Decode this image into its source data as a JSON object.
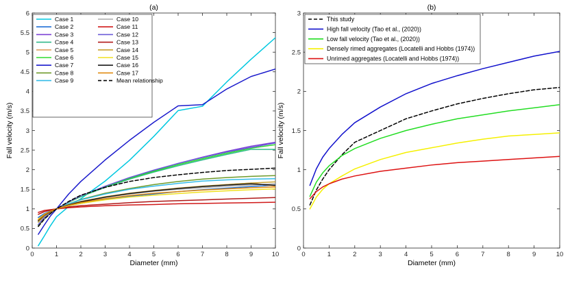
{
  "chart_data": [
    {
      "type": "line",
      "title": "(a)",
      "xlabel": "Diameter (mm)",
      "ylabel": "Fall velocity (m/s)",
      "xlim": [
        0,
        10
      ],
      "ylim": [
        0,
        6
      ],
      "xticks": [
        0,
        1,
        2,
        3,
        4,
        5,
        6,
        7,
        8,
        9,
        10
      ],
      "yticks": [
        0,
        0.5,
        1,
        1.5,
        2,
        2.5,
        3,
        3.5,
        4,
        4.5,
        5,
        5.5,
        6
      ],
      "grid": false,
      "legend_position": "top-left",
      "legend_columns": 2,
      "series": [
        {
          "name": "Case 1",
          "color": "#00c8e0",
          "x": [
            0.25,
            0.5,
            0.75,
            1,
            1.5,
            2,
            3,
            4,
            5,
            6,
            7,
            8,
            9,
            10
          ],
          "y": [
            0.06,
            0.31,
            0.57,
            0.8,
            1.06,
            1.26,
            1.71,
            2.24,
            2.85,
            3.51,
            3.62,
            4.24,
            4.82,
            5.37
          ]
        },
        {
          "name": "Case 2",
          "color": "#1f6fd6",
          "x": [
            0.25,
            0.5,
            0.75,
            1,
            1.5,
            2,
            3,
            4,
            5,
            6,
            7,
            8,
            9,
            10
          ],
          "y": [
            0.78,
            0.88,
            0.95,
            1.0,
            1.08,
            1.14,
            1.24,
            1.32,
            1.38,
            1.44,
            1.49,
            1.53,
            1.57,
            1.61
          ]
        },
        {
          "name": "Case 3",
          "color": "#7a3fd4",
          "x": [
            0.25,
            0.5,
            0.75,
            1,
            1.5,
            2,
            3,
            4,
            5,
            6,
            7,
            8,
            9,
            10
          ],
          "y": [
            0.59,
            0.77,
            0.9,
            1.0,
            1.17,
            1.32,
            1.57,
            1.79,
            1.98,
            2.16,
            2.32,
            2.47,
            2.6,
            2.7
          ]
        },
        {
          "name": "Case 4",
          "color": "#2fb98a",
          "x": [
            0.25,
            0.5,
            0.75,
            1,
            1.5,
            2,
            3,
            4,
            5,
            6,
            7,
            8,
            9,
            10
          ],
          "y": [
            0.6,
            0.78,
            0.9,
            1.0,
            1.17,
            1.31,
            1.55,
            1.76,
            1.94,
            2.1,
            2.25,
            2.39,
            2.52,
            2.52
          ]
        },
        {
          "name": "Case 5",
          "color": "#e0a060",
          "x": [
            0.25,
            0.5,
            0.75,
            1,
            1.5,
            2,
            3,
            4,
            5,
            6,
            7,
            8,
            9,
            10
          ],
          "y": [
            0.7,
            0.84,
            0.93,
            1.0,
            1.1,
            1.18,
            1.3,
            1.39,
            1.46,
            1.52,
            1.57,
            1.62,
            1.66,
            1.58
          ]
        },
        {
          "name": "Case 6",
          "color": "#2edc2e",
          "x": [
            0.25,
            0.5,
            0.75,
            1,
            1.5,
            2,
            3,
            4,
            5,
            6,
            7,
            8,
            9,
            10
          ],
          "y": [
            0.59,
            0.77,
            0.9,
            1.0,
            1.17,
            1.32,
            1.57,
            1.78,
            1.96,
            2.13,
            2.28,
            2.42,
            2.55,
            2.64
          ]
        },
        {
          "name": "Case 7",
          "color": "#1a1acc",
          "x": [
            0.25,
            0.5,
            0.75,
            1,
            1.5,
            2,
            3,
            4,
            5,
            6,
            7,
            8,
            9,
            10
          ],
          "y": [
            0.35,
            0.59,
            0.82,
            1.0,
            1.38,
            1.7,
            2.25,
            2.75,
            3.21,
            3.63,
            3.66,
            4.06,
            4.38,
            4.57
          ]
        },
        {
          "name": "Case 8",
          "color": "#6e9a2a",
          "x": [
            0.25,
            0.5,
            0.75,
            1,
            1.5,
            2,
            3,
            4,
            5,
            6,
            7,
            8,
            9,
            10
          ],
          "y": [
            0.57,
            0.75,
            0.89,
            1.0,
            1.13,
            1.24,
            1.4,
            1.52,
            1.62,
            1.7,
            1.76,
            1.8,
            1.83,
            1.85
          ]
        },
        {
          "name": "Case 9",
          "color": "#33bbe8",
          "x": [
            0.25,
            0.5,
            0.75,
            1,
            1.5,
            2,
            3,
            4,
            5,
            6,
            7,
            8,
            9,
            10
          ],
          "y": [
            0.66,
            0.82,
            0.93,
            1.0,
            1.13,
            1.23,
            1.38,
            1.5,
            1.58,
            1.65,
            1.71,
            1.74,
            1.76,
            1.77
          ]
        },
        {
          "name": "Case 10",
          "color": "#a8a8a8",
          "x": [
            0.25,
            0.5,
            0.75,
            1,
            1.5,
            2,
            3,
            4,
            5,
            6,
            7,
            8,
            9,
            10
          ],
          "y": [
            0.68,
            0.83,
            0.93,
            1.0,
            1.1,
            1.17,
            1.29,
            1.38,
            1.45,
            1.5,
            1.54,
            1.58,
            1.61,
            1.64
          ]
        },
        {
          "name": "Case 11",
          "color": "#d01818",
          "x": [
            0.25,
            0.5,
            0.75,
            1,
            1.5,
            2,
            3,
            4,
            5,
            6,
            7,
            8,
            9,
            10
          ],
          "y": [
            0.91,
            0.96,
            0.98,
            1.0,
            1.03,
            1.05,
            1.08,
            1.1,
            1.11,
            1.13,
            1.14,
            1.15,
            1.16,
            1.17
          ]
        },
        {
          "name": "Case 12",
          "color": "#6a5ad8",
          "x": [
            0.25,
            0.5,
            0.75,
            1,
            1.5,
            2,
            3,
            4,
            5,
            6,
            7,
            8,
            9,
            10
          ],
          "y": [
            0.6,
            0.78,
            0.91,
            1.0,
            1.18,
            1.33,
            1.58,
            1.8,
            1.99,
            2.16,
            2.31,
            2.45,
            2.57,
            2.68
          ]
        },
        {
          "name": "Case 13",
          "color": "#b01818",
          "x": [
            0.25,
            0.5,
            0.75,
            1,
            1.5,
            2,
            3,
            4,
            5,
            6,
            7,
            8,
            9,
            10
          ],
          "y": [
            0.86,
            0.93,
            0.97,
            1.0,
            1.05,
            1.08,
            1.12,
            1.16,
            1.19,
            1.21,
            1.23,
            1.25,
            1.27,
            1.29
          ]
        },
        {
          "name": "Case 14",
          "color": "#c8a030",
          "x": [
            0.25,
            0.5,
            0.75,
            1,
            1.5,
            2,
            3,
            4,
            5,
            6,
            7,
            8,
            9,
            10
          ],
          "y": [
            0.66,
            0.82,
            0.92,
            1.0,
            1.11,
            1.19,
            1.31,
            1.4,
            1.47,
            1.53,
            1.58,
            1.62,
            1.66,
            1.69
          ]
        },
        {
          "name": "Case 15",
          "color": "#f0e020",
          "x": [
            0.25,
            0.5,
            0.75,
            1,
            1.5,
            2,
            3,
            4,
            5,
            6,
            7,
            8,
            9,
            10
          ],
          "y": [
            0.74,
            0.86,
            0.94,
            1.0,
            1.08,
            1.14,
            1.23,
            1.3,
            1.35,
            1.39,
            1.43,
            1.46,
            1.49,
            1.51
          ]
        },
        {
          "name": "Case 16",
          "color": "#1a1a1a",
          "x": [
            0.25,
            0.5,
            0.75,
            1,
            1.5,
            2,
            3,
            4,
            5,
            6,
            7,
            8,
            9,
            10
          ],
          "y": [
            0.7,
            0.84,
            0.93,
            1.0,
            1.1,
            1.18,
            1.3,
            1.39,
            1.46,
            1.52,
            1.57,
            1.61,
            1.64,
            1.6
          ]
        },
        {
          "name": "Case 17",
          "color": "#e08a10",
          "x": [
            0.25,
            0.5,
            0.75,
            1,
            1.5,
            2,
            3,
            4,
            5,
            6,
            7,
            8,
            9,
            10
          ],
          "y": [
            0.72,
            0.85,
            0.94,
            1.0,
            1.09,
            1.16,
            1.26,
            1.34,
            1.4,
            1.44,
            1.48,
            1.51,
            1.54,
            1.56
          ]
        },
        {
          "name": "Mean relationship",
          "color": "#000000",
          "dashed": true,
          "x": [
            0.25,
            0.5,
            0.75,
            1,
            1.5,
            2,
            3,
            4,
            5,
            6,
            7,
            8,
            9,
            10
          ],
          "y": [
            0.55,
            0.74,
            0.88,
            1.0,
            1.19,
            1.35,
            1.55,
            1.7,
            1.8,
            1.87,
            1.93,
            1.98,
            2.01,
            2.04
          ]
        }
      ]
    },
    {
      "type": "line",
      "title": "(b)",
      "xlabel": "Diameter (mm)",
      "ylabel": "Fall velocity (m/s)",
      "xlim": [
        0,
        10
      ],
      "ylim": [
        0,
        3
      ],
      "xticks": [
        0,
        1,
        2,
        3,
        4,
        5,
        6,
        7,
        8,
        9,
        10
      ],
      "yticks": [
        0,
        0.5,
        1,
        1.5,
        2,
        2.5,
        3
      ],
      "grid": false,
      "legend_position": "top-left",
      "legend_columns": 1,
      "series": [
        {
          "name": "This study",
          "color": "#000000",
          "dashed": true,
          "x": [
            0.25,
            0.5,
            0.75,
            1,
            1.5,
            2,
            3,
            4,
            5,
            6,
            7,
            8,
            9,
            10
          ],
          "y": [
            0.55,
            0.74,
            0.88,
            1.0,
            1.19,
            1.35,
            1.5,
            1.65,
            1.75,
            1.84,
            1.91,
            1.97,
            2.02,
            2.05
          ]
        },
        {
          "name": "High fall velocity (Tao et al., (2020))",
          "color": "#1010cc",
          "x": [
            0.25,
            0.5,
            0.75,
            1,
            1.5,
            2,
            3,
            4,
            5,
            6,
            7,
            8,
            9,
            10
          ],
          "y": [
            0.8,
            1.01,
            1.16,
            1.27,
            1.45,
            1.6,
            1.8,
            1.97,
            2.1,
            2.2,
            2.29,
            2.37,
            2.45,
            2.51
          ]
        },
        {
          "name": "Low fall velocity (Tao et al., (2020))",
          "color": "#22dd22",
          "x": [
            0.25,
            0.5,
            0.75,
            1,
            1.5,
            2,
            3,
            4,
            5,
            6,
            7,
            8,
            9,
            10
          ],
          "y": [
            0.66,
            0.84,
            0.96,
            1.05,
            1.18,
            1.27,
            1.4,
            1.5,
            1.58,
            1.65,
            1.7,
            1.75,
            1.79,
            1.83
          ]
        },
        {
          "name": "Densely rimed aggregates (Locatelli and Hobbs (1974))",
          "color": "#f5f000",
          "x": [
            0.25,
            0.5,
            0.75,
            1,
            1.5,
            2,
            3,
            4,
            5,
            6,
            7,
            8,
            9,
            10
          ],
          "y": [
            0.5,
            0.65,
            0.75,
            0.82,
            0.92,
            1.01,
            1.13,
            1.22,
            1.28,
            1.34,
            1.39,
            1.43,
            1.45,
            1.47
          ]
        },
        {
          "name": "Unrimed aggregates (Locatelli and Hobbs (1974))",
          "color": "#dd1111",
          "x": [
            0.25,
            0.5,
            0.75,
            1,
            1.5,
            2,
            3,
            4,
            5,
            6,
            7,
            8,
            9,
            10
          ],
          "y": [
            0.63,
            0.72,
            0.78,
            0.82,
            0.88,
            0.92,
            0.98,
            1.02,
            1.06,
            1.09,
            1.11,
            1.13,
            1.15,
            1.17
          ]
        }
      ]
    }
  ]
}
